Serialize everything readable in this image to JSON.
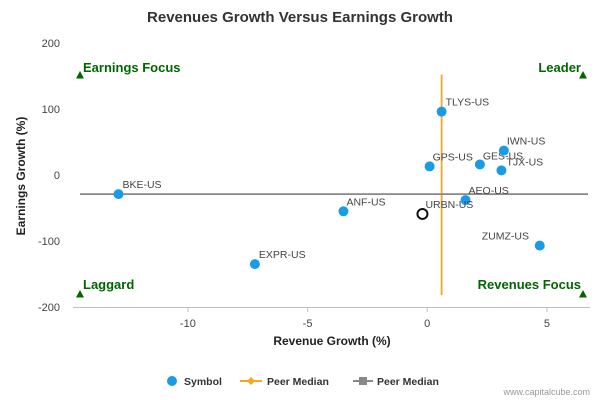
{
  "chart_data": {
    "type": "scatter",
    "title": "Revenues Growth Versus Earnings Growth",
    "xlabel": "Revenue Growth (%)",
    "ylabel": "Earnings Growth (%)",
    "xlim": [
      -14.8,
      6.8
    ],
    "ylim": [
      -200,
      200
    ],
    "x_ticks": [
      -10,
      -5,
      0,
      5
    ],
    "y_ticks": [
      200,
      100,
      0,
      -100,
      -200
    ],
    "grid": false,
    "legend_position": "bottom",
    "series": [
      {
        "name": "Symbol",
        "color": "#1a9be6",
        "points": [
          {
            "label": "BKE-US",
            "x": -12.9,
            "y": -29
          },
          {
            "label": "ANF-US",
            "x": -3.5,
            "y": -55
          },
          {
            "label": "EXPR-US",
            "x": -7.2,
            "y": -135
          },
          {
            "label": "GPS-US",
            "x": 0.1,
            "y": 13
          },
          {
            "label": "TLYS-US",
            "x": 0.6,
            "y": 96
          },
          {
            "label": "GES-US",
            "x": 2.2,
            "y": 16
          },
          {
            "label": "IWN-US",
            "x": 3.2,
            "y": 37
          },
          {
            "label": "TJX-US",
            "x": 3.1,
            "y": 7
          },
          {
            "label": "AEO-US",
            "x": 1.6,
            "y": -38
          },
          {
            "label": "ZUMZ-US",
            "x": 4.7,
            "y": -107
          }
        ]
      },
      {
        "name": "URBN-US",
        "highlight": true,
        "points": [
          {
            "label": "URBN-US",
            "x": -0.2,
            "y": -59
          }
        ]
      },
      {
        "name": "Peer Median",
        "orientation": "vertical",
        "x": 0.6,
        "y_range": [
          -182,
          152
        ],
        "color": "#f5a623"
      },
      {
        "name": "Peer Median",
        "orientation": "horizontal",
        "y": -29,
        "color": "#888888"
      }
    ],
    "quadrants": {
      "top_left": "Earnings Focus",
      "top_right": "Leader",
      "bottom_left": "Laggard",
      "bottom_right": "Revenues Focus"
    },
    "legend": [
      "Symbol",
      "Peer Median",
      "Peer Median"
    ]
  },
  "footer": "www.capitalcube.com",
  "colors": {
    "symbol": "#1a9be6",
    "median_v": "#f5a623",
    "median_h": "#888888",
    "quadrant": "#006600",
    "axis": "#c0c0c0"
  }
}
